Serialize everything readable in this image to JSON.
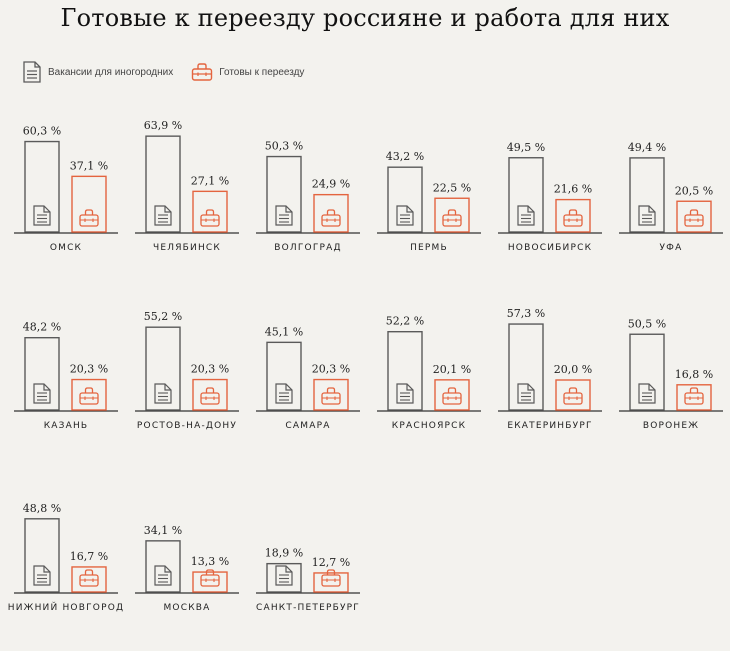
{
  "title": "Готовые к переезду россияне и работа для них",
  "legend": [
    {
      "label": "Вакансии для иногородних",
      "icon": "document-icon"
    },
    {
      "label": "Готовы к переезду",
      "icon": "bag-icon"
    }
  ],
  "colors": {
    "vacancies": "#5a5a5a",
    "ready": "#e4643f",
    "background": "#f3f2ee"
  },
  "chart_data": {
    "type": "bar",
    "title": "Готовые к переезду россияне и работа для них",
    "series_names": [
      "Вакансии для иногородних",
      "Готовы к переезду"
    ],
    "ylim": [
      0,
      70
    ],
    "unit": "%",
    "cities": [
      {
        "name": "ОМСК",
        "vacancies": 60.3,
        "ready": 37.1,
        "vacancies_label": "60,3 %",
        "ready_label": "37,1 %"
      },
      {
        "name": "ЧЕЛЯБИНСК",
        "vacancies": 63.9,
        "ready": 27.1,
        "vacancies_label": "63,9 %",
        "ready_label": "27,1 %"
      },
      {
        "name": "ВОЛГОГРАД",
        "vacancies": 50.3,
        "ready": 24.9,
        "vacancies_label": "50,3 %",
        "ready_label": "24,9 %"
      },
      {
        "name": "ПЕРМЬ",
        "vacancies": 43.2,
        "ready": 22.5,
        "vacancies_label": "43,2 %",
        "ready_label": "22,5 %"
      },
      {
        "name": "НОВОСИБИРСК",
        "vacancies": 49.5,
        "ready": 21.6,
        "vacancies_label": "49,5 %",
        "ready_label": "21,6 %"
      },
      {
        "name": "УФА",
        "vacancies": 49.4,
        "ready": 20.5,
        "vacancies_label": "49,4 %",
        "ready_label": "20,5 %"
      },
      {
        "name": "КАЗАНЬ",
        "vacancies": 48.2,
        "ready": 20.3,
        "vacancies_label": "48,2 %",
        "ready_label": "20,3 %"
      },
      {
        "name": "РОСТОВ-НА-ДОНУ",
        "vacancies": 55.2,
        "ready": 20.3,
        "vacancies_label": "55,2 %",
        "ready_label": "20,3 %"
      },
      {
        "name": "САМАРА",
        "vacancies": 45.1,
        "ready": 20.3,
        "vacancies_label": "45,1 %",
        "ready_label": "20,3 %"
      },
      {
        "name": "КРАСНОЯРСК",
        "vacancies": 52.2,
        "ready": 20.1,
        "vacancies_label": "52,2 %",
        "ready_label": "20,1 %"
      },
      {
        "name": "ЕКАТЕРИНБУРГ",
        "vacancies": 57.3,
        "ready": 20.0,
        "vacancies_label": "57,3 %",
        "ready_label": "20,0 %"
      },
      {
        "name": "ВОРОНЕЖ",
        "vacancies": 50.5,
        "ready": 16.8,
        "vacancies_label": "50,5 %",
        "ready_label": "16,8 %"
      },
      {
        "name": "НИЖНИЙ НОВГОРОД",
        "vacancies": 48.8,
        "ready": 16.7,
        "vacancies_label": "48,8 %",
        "ready_label": "16,7 %"
      },
      {
        "name": "МОСКВА",
        "vacancies": 34.1,
        "ready": 13.3,
        "vacancies_label": "34,1 %",
        "ready_label": "13,3 %"
      },
      {
        "name": "САНКТ-ПЕТЕРБУРГ",
        "vacancies": 18.9,
        "ready": 12.7,
        "vacancies_label": "18,9 %",
        "ready_label": "12,7 %"
      }
    ]
  }
}
